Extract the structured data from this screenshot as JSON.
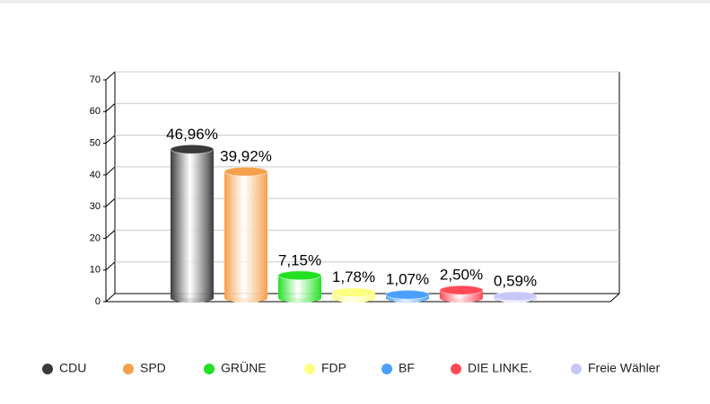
{
  "chart_data": {
    "type": "bar",
    "categories": [
      "CDU",
      "SPD",
      "GRÜNE",
      "FDP",
      "BF",
      "DIE LINKE.",
      "Freie Wähler"
    ],
    "values": [
      46.96,
      39.92,
      7.15,
      1.78,
      1.07,
      2.5,
      0.59
    ],
    "value_labels": [
      "46,96%",
      "39,92%",
      "7,15%",
      "1,78%",
      "1,07%",
      "2,50%",
      "0,59%"
    ],
    "colors": [
      "#3a3a3a",
      "#f5a04a",
      "#22e022",
      "#ffff80",
      "#4aa0ff",
      "#ff4a55",
      "#c8c8f8"
    ],
    "ylim": [
      0,
      70
    ],
    "yticks": [
      0,
      10,
      20,
      30,
      40,
      50,
      60,
      70
    ],
    "grid": true
  }
}
